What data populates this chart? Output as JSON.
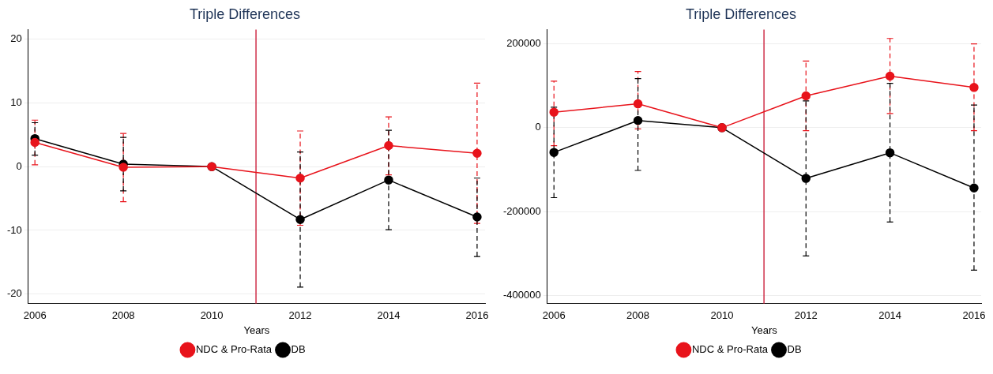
{
  "chart_data": [
    {
      "type": "line",
      "title": "Triple Differences",
      "xlabel": "Years",
      "x": [
        2006,
        2008,
        2010,
        2012,
        2014,
        2016
      ],
      "xlim": [
        2005.85,
        2016.18
      ],
      "xticks": [
        2006,
        2008,
        2010,
        2012,
        2014,
        2016
      ],
      "ylim": [
        -21.5,
        21.5
      ],
      "yticks": [
        -20,
        -10,
        0,
        10,
        20
      ],
      "grid": "y",
      "legend": "bottom",
      "marker": "circle",
      "ref_lines": [
        {
          "axis": "x",
          "value": 2011,
          "color": "#c8102e"
        }
      ],
      "series": [
        {
          "name": "NDC & Pro-Rata",
          "color": "#e8131b",
          "values": [
            3.8,
            -0.1,
            0,
            -1.8,
            3.3,
            2.1
          ],
          "errors": [
            [
              0.3,
              7.3
            ],
            [
              -5.5,
              5.2
            ],
            null,
            [
              -9.2,
              5.6
            ],
            [
              -1.3,
              7.8
            ],
            [
              -8.9,
              13.1
            ]
          ]
        },
        {
          "name": "DB",
          "color": "#000000",
          "values": [
            4.4,
            0.4,
            0,
            -8.3,
            -2.1,
            -7.9
          ],
          "errors": [
            [
              1.8,
              6.9
            ],
            [
              -3.8,
              4.6
            ],
            null,
            [
              -18.9,
              2.3
            ],
            [
              -9.9,
              5.7
            ],
            [
              -14.1,
              -1.8
            ]
          ]
        }
      ]
    },
    {
      "type": "line",
      "title": "Triple Differences",
      "xlabel": "Years",
      "x": [
        2006,
        2008,
        2010,
        2012,
        2014,
        2016
      ],
      "xlim": [
        2005.84,
        2016.17
      ],
      "xticks": [
        2006,
        2008,
        2010,
        2012,
        2014,
        2016
      ],
      "ylim": [
        -420000,
        234000
      ],
      "yticks": [
        -400000,
        -200000,
        0,
        200000
      ],
      "grid": "y",
      "legend": "bottom",
      "marker": "circle",
      "ref_lines": [
        {
          "axis": "x",
          "value": 2011,
          "color": "#c8102e"
        }
      ],
      "series": [
        {
          "name": "NDC & Pro-Rata",
          "color": "#e8131b",
          "values": [
            37000,
            57000,
            0,
            76000,
            123000,
            96000
          ],
          "errors": [
            [
              -43000,
              111000
            ],
            [
              -3000,
              134000
            ],
            null,
            [
              -7000,
              159000
            ],
            [
              34000,
              213000
            ],
            [
              -7000,
              200000
            ]
          ]
        },
        {
          "name": "DB",
          "color": "#000000",
          "values": [
            -59000,
            17000,
            0,
            -121000,
            -60000,
            -144000
          ],
          "errors": [
            [
              -167000,
              49000
            ],
            [
              -102000,
              117000
            ],
            null,
            [
              -306000,
              64000
            ],
            [
              -225000,
              106000
            ],
            [
              -340000,
              54000
            ]
          ]
        }
      ]
    }
  ]
}
